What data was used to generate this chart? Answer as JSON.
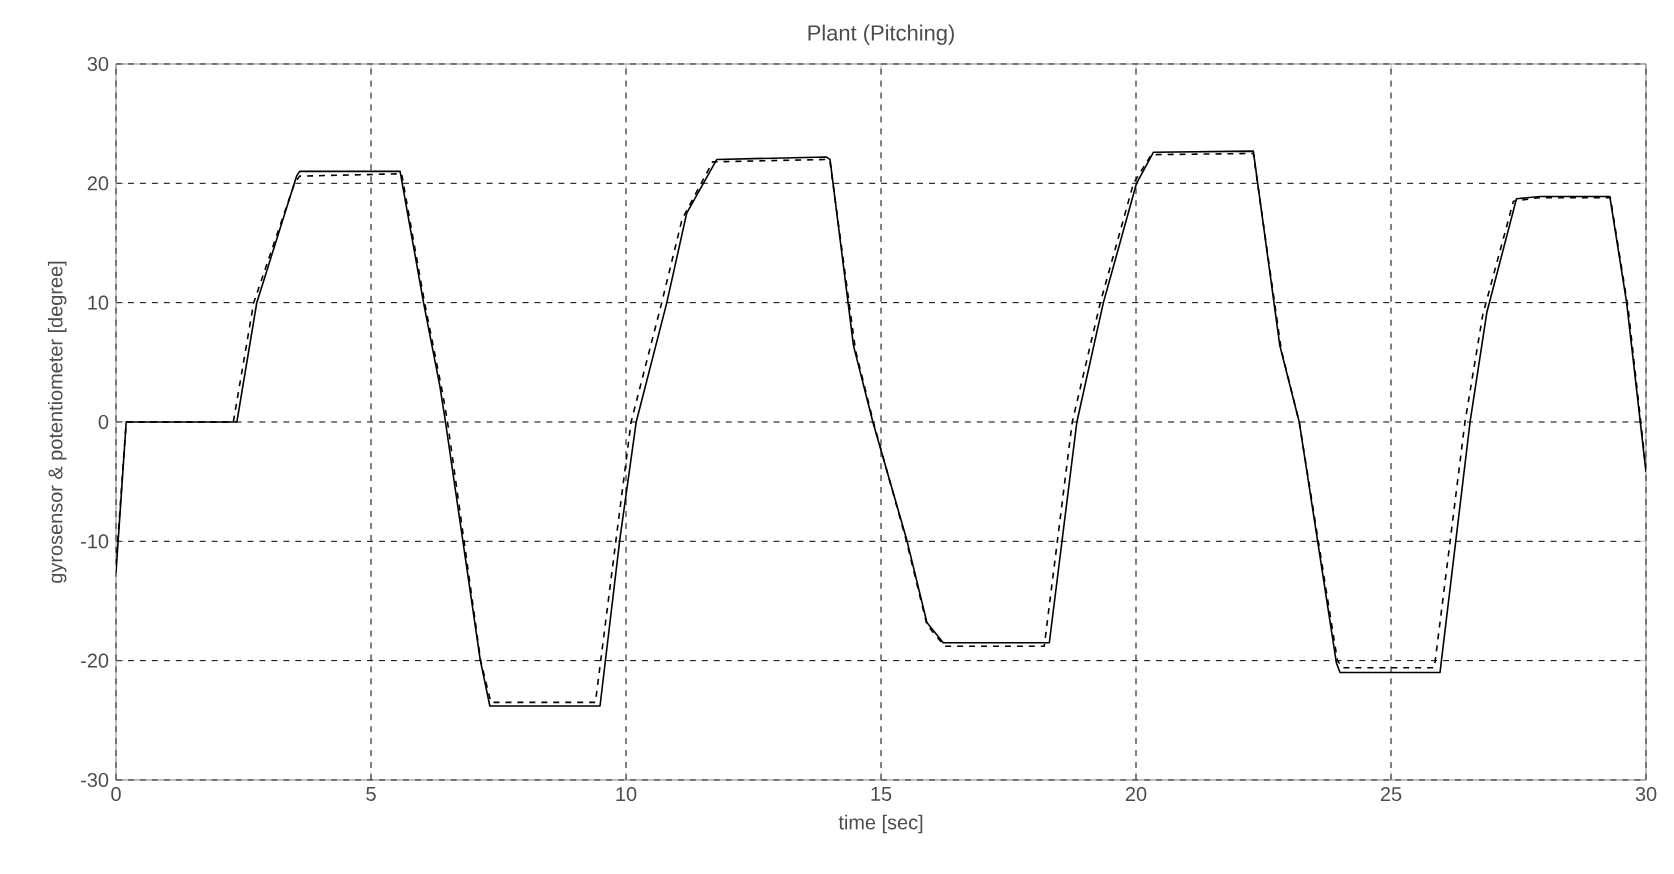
{
  "chart_data": {
    "type": "line",
    "title": "Plant  (Pitching)",
    "xlabel": "time [sec]",
    "ylabel": "gyrosensor & potentiometer [degree]",
    "xlim": [
      0,
      30
    ],
    "ylim": [
      -30,
      30
    ],
    "xticks": [
      0,
      5,
      10,
      15,
      20,
      25,
      30
    ],
    "yticks": [
      -30,
      -20,
      -10,
      0,
      10,
      20,
      30
    ],
    "grid": true,
    "series": [
      {
        "color": "#000000",
        "line_style": "solid",
        "x": [
          0,
          0.2,
          2.37,
          2.76,
          3.54,
          3.6,
          5.57,
          6.03,
          6.35,
          6.46,
          7.14,
          7.33,
          9.49,
          9.88,
          10.2,
          10.8,
          11.19,
          11.78,
          13.93,
          14.0,
          14.46,
          14.84,
          15.5,
          15.9,
          16.22,
          18.3,
          18.84,
          19.36,
          20.01,
          20.34,
          22.3,
          22.82,
          23.2,
          23.93,
          24.0,
          25.96,
          26.55,
          26.88,
          27.46,
          27.92,
          29.29,
          29.62,
          30
        ],
        "values": [
          -12.6,
          0,
          0,
          10,
          20.6,
          21,
          21,
          10,
          3,
          0,
          -19.9,
          -23.8,
          -23.8,
          -9.8,
          0,
          10,
          17.5,
          22,
          22.2,
          22,
          6.4,
          0,
          -9.8,
          -16.8,
          -18.5,
          -18.5,
          0,
          10,
          20,
          22.6,
          22.7,
          6.4,
          0,
          -20.2,
          -21,
          -21,
          0,
          9.2,
          18.7,
          18.9,
          18.9,
          10,
          -4.2
        ]
      },
      {
        "color": "#000000",
        "line_style": "dashed",
        "x": [
          0,
          0.2,
          2.3,
          2.7,
          3.5,
          3.6,
          5.6,
          6.05,
          6.4,
          6.5,
          7.15,
          7.35,
          9.4,
          9.8,
          10.1,
          10.7,
          11.1,
          11.7,
          13.95,
          14.0,
          14.5,
          14.85,
          15.5,
          15.9,
          16.25,
          18.2,
          18.75,
          19.3,
          19.95,
          20.3,
          22.3,
          22.85,
          23.2,
          23.95,
          24.05,
          25.85,
          26.45,
          26.8,
          27.4,
          27.9,
          29.3,
          29.65,
          30
        ],
        "values": [
          -12,
          0,
          0,
          10,
          20,
          20.6,
          20.8,
          10,
          2.5,
          0,
          -20,
          -23.5,
          -23.5,
          -10,
          0,
          10,
          17,
          21.8,
          22,
          21.8,
          6,
          0,
          -10,
          -17,
          -18.8,
          -18.8,
          0,
          10,
          20,
          22.4,
          22.5,
          6,
          0,
          -20,
          -20.6,
          -20.6,
          0,
          9,
          18.5,
          18.8,
          18.8,
          9.5,
          -4
        ]
      }
    ]
  }
}
